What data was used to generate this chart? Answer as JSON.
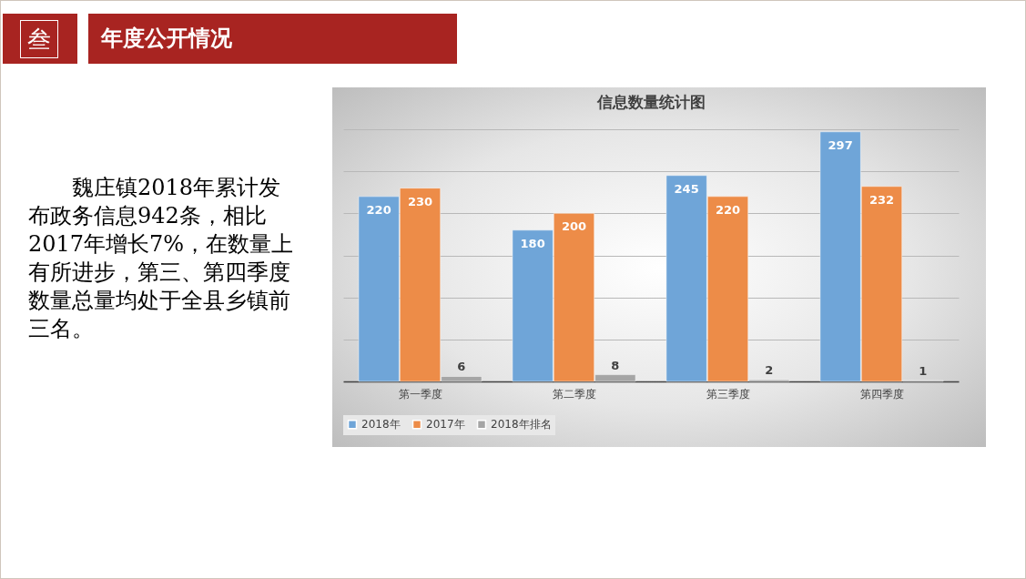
{
  "chart_data": {
    "type": "bar",
    "title": "信息数量统计图",
    "annotations": [
      "叁",
      "年度公开情况",
      "魏庄镇2018年累计发布政务信息942条，相比2017年增长7%，在数量上有所进步，第三、第四季度数量总量均处于全县乡镇前三名。"
    ],
    "categories": [
      "第一季度",
      "第二季度",
      "第三季度",
      "第四季度"
    ],
    "series": [
      {
        "name": "2018年",
        "color": "#6fa5d8",
        "values": [
          220,
          180,
          245,
          297
        ]
      },
      {
        "name": "2017年",
        "color": "#ed8c48",
        "values": [
          230,
          200,
          220,
          232
        ]
      },
      {
        "name": "2018年排名",
        "color": "#a5a5a5",
        "values": [
          6,
          8,
          2,
          1
        ]
      }
    ],
    "tick_labels": "x",
    "grid": "y",
    "legend": "bottom",
    "data_labels": true
  }
}
